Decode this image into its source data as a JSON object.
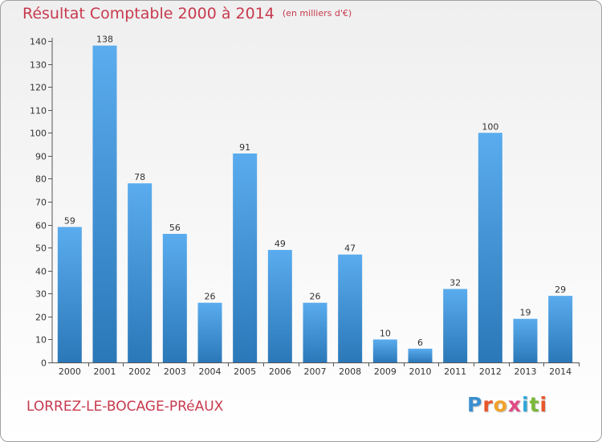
{
  "header": {
    "title": "Résultat Comptable 2000 à 2014",
    "subtitle": "(en milliers d'€)"
  },
  "commune": "LORREZ-LE-BOCAGE-PRéAUX",
  "logo": {
    "text": "Proxiti",
    "colors": [
      "#3a8fd1",
      "#e8562a",
      "#f0a32a",
      "#e14a86",
      "#2fa8d8",
      "#7ab83a",
      "#e8562a"
    ]
  },
  "colors": {
    "bar_light": "#5aacee",
    "bar_dark": "#2b78b8",
    "axis": "#555555",
    "title": "#c73a4e"
  },
  "chart_data": {
    "type": "bar",
    "title": "Résultat Comptable 2000 à 2014",
    "xlabel": "",
    "ylabel": "en milliers d'€",
    "categories": [
      "2000",
      "2001",
      "2002",
      "2003",
      "2004",
      "2005",
      "2006",
      "2007",
      "2008",
      "2009",
      "2010",
      "2011",
      "2012",
      "2013",
      "2014"
    ],
    "values": [
      59,
      138,
      78,
      56,
      26,
      91,
      49,
      26,
      47,
      10,
      6,
      32,
      100,
      19,
      29
    ],
    "ylim": [
      0,
      140
    ],
    "yticks": [
      0,
      10,
      20,
      30,
      40,
      50,
      60,
      70,
      80,
      90,
      100,
      110,
      120,
      130,
      140
    ],
    "grid": false
  }
}
